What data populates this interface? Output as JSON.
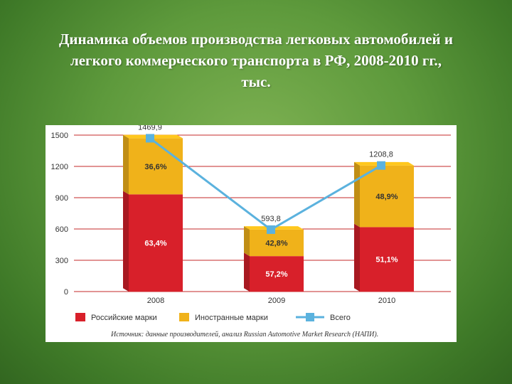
{
  "title": {
    "line1": "Динамика объемов производства легковых автомобилей и",
    "line2": "легкого коммерческого транспорта в РФ, 2008-2010 гг.,",
    "line3": "тыс."
  },
  "chart_data": {
    "type": "bar",
    "stacked": true,
    "categories": [
      "2008",
      "2009",
      "2010"
    ],
    "series": [
      {
        "name": "Российские марки",
        "values": [
          932.0,
          339.7,
          617.7
        ],
        "labels": [
          "63,4%",
          "57,2%",
          "51,1%"
        ],
        "color": "#d8202a"
      },
      {
        "name": "Иностранные марки",
        "values": [
          537.9,
          254.1,
          591.1
        ],
        "labels": [
          "36,6%",
          "42,8%",
          "48,9%"
        ],
        "color": "#f0b21a"
      },
      {
        "name": "Всего",
        "type": "line",
        "values": [
          1469.9,
          593.8,
          1208.8
        ],
        "labels": [
          "1469,9",
          "593,8",
          "1208,8"
        ],
        "color": "#5bb2de"
      }
    ],
    "yticks": [
      "0",
      "300",
      "600",
      "900",
      "1200",
      "1500"
    ],
    "ylim": [
      0,
      1500
    ],
    "grid": true,
    "legend": "bottom",
    "source": "Источник: данные производителей, анализ Russian Automotive Market Research (НАПИ)."
  }
}
